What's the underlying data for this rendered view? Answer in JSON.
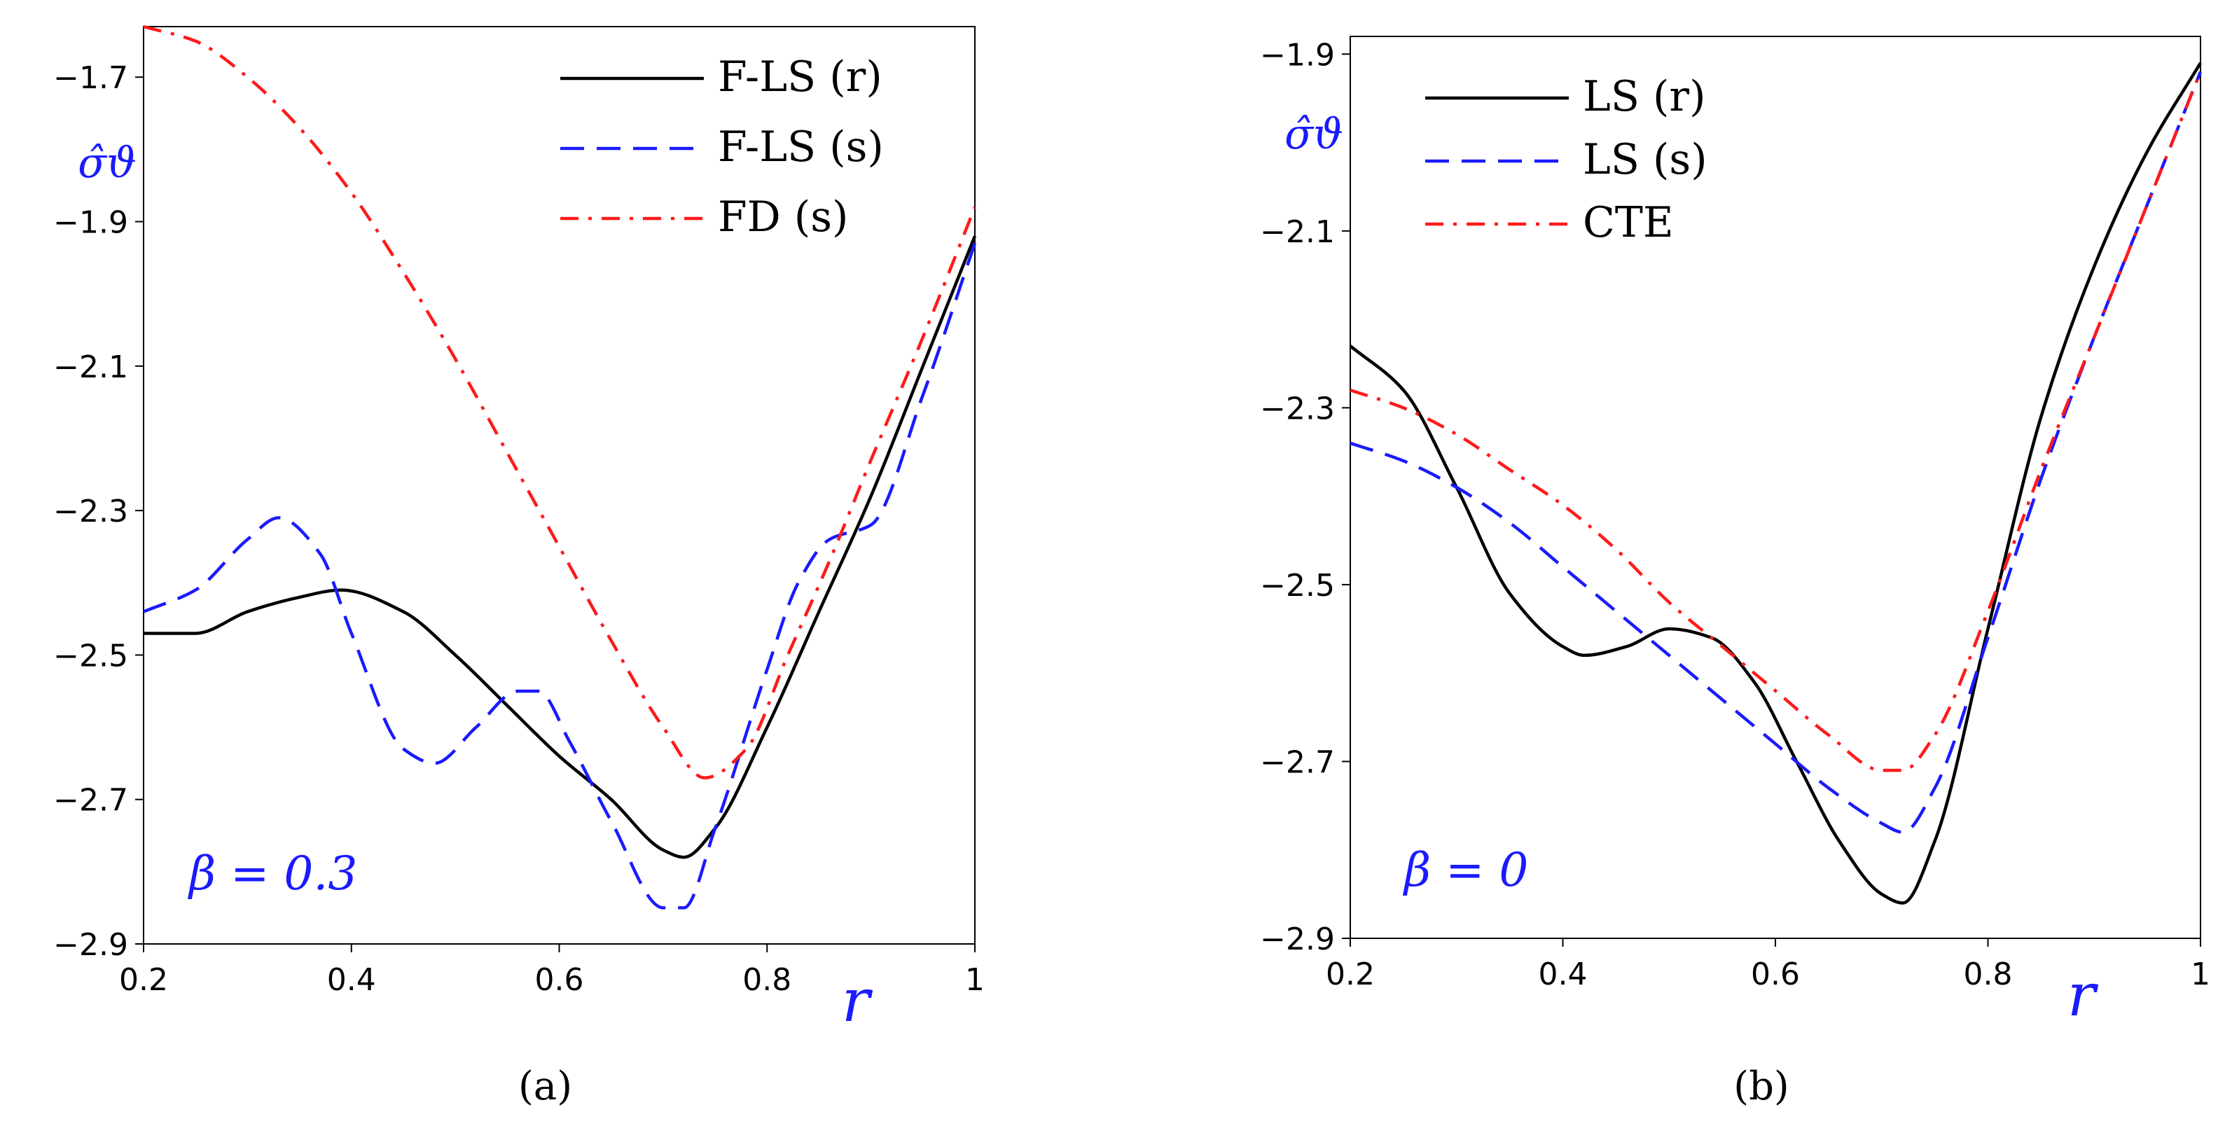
{
  "chart_data": [
    {
      "type": "line",
      "panel_label": "(a)",
      "xlabel": "r",
      "ylabel": "σ̂ϑ",
      "xlim": [
        0.2,
        1.0
      ],
      "ylim": [
        -2.9,
        -1.63
      ],
      "xticks": [
        0.2,
        0.4,
        0.6,
        0.8,
        1
      ],
      "xtick_labels": [
        "0.2",
        "0.4",
        "0.6",
        "0.8",
        "1"
      ],
      "yticks": [
        -2.9,
        -2.7,
        -2.5,
        -2.3,
        -2.1,
        -1.9,
        -1.7
      ],
      "ytick_labels": [
        "−2.9",
        "−2.7",
        "−2.5",
        "−2.3",
        "−2.1",
        "−1.9",
        "−1.7"
      ],
      "grid": false,
      "legend_position": "top-right",
      "annotation": "β = 0.3",
      "series": [
        {
          "name": "F-LS (r)",
          "color": "#000000",
          "dash": "solid",
          "x": [
            0.2,
            0.25,
            0.3,
            0.35,
            0.39,
            0.45,
            0.5,
            0.55,
            0.6,
            0.65,
            0.7,
            0.72,
            0.75,
            0.8,
            0.85,
            0.9,
            0.95,
            1.0
          ],
          "y": [
            -2.47,
            -2.47,
            -2.44,
            -2.42,
            -2.41,
            -2.44,
            -2.5,
            -2.57,
            -2.64,
            -2.7,
            -2.77,
            -2.78,
            -2.74,
            -2.6,
            -2.44,
            -2.28,
            -2.1,
            -1.92
          ]
        },
        {
          "name": "F-LS (s)",
          "color": "#1a1aff",
          "dash": "dashed",
          "x": [
            0.2,
            0.25,
            0.3,
            0.33,
            0.37,
            0.4,
            0.45,
            0.48,
            0.52,
            0.56,
            0.58,
            0.61,
            0.65,
            0.7,
            0.72,
            0.75,
            0.8,
            0.83,
            0.86,
            0.9,
            0.95,
            1.0
          ],
          "y": [
            -2.44,
            -2.41,
            -2.34,
            -2.31,
            -2.36,
            -2.47,
            -2.63,
            -2.65,
            -2.6,
            -2.55,
            -2.55,
            -2.62,
            -2.73,
            -2.85,
            -2.85,
            -2.74,
            -2.52,
            -2.4,
            -2.34,
            -2.32,
            -2.14,
            -1.93
          ]
        },
        {
          "name": "FD (s)",
          "color": "#ff1a1a",
          "dash": "dashdot",
          "x": [
            0.2,
            0.25,
            0.3,
            0.35,
            0.4,
            0.45,
            0.5,
            0.55,
            0.6,
            0.65,
            0.7,
            0.74,
            0.78,
            0.82,
            0.86,
            0.9,
            0.95,
            1.0
          ],
          "y": [
            -1.63,
            -1.65,
            -1.7,
            -1.77,
            -1.86,
            -1.97,
            -2.09,
            -2.22,
            -2.35,
            -2.48,
            -2.6,
            -2.67,
            -2.63,
            -2.5,
            -2.37,
            -2.23,
            -2.06,
            -1.88
          ]
        }
      ]
    },
    {
      "type": "line",
      "panel_label": "(b)",
      "xlabel": "r",
      "ylabel": "σ̂ϑ",
      "xlim": [
        0.2,
        1.0
      ],
      "ylim": [
        -2.9,
        -1.88
      ],
      "xticks": [
        0.2,
        0.4,
        0.6,
        0.8,
        1
      ],
      "xtick_labels": [
        "0.2",
        "0.4",
        "0.6",
        "0.8",
        "1"
      ],
      "yticks": [
        -2.9,
        -2.7,
        -2.5,
        -2.3,
        -2.1,
        -1.9
      ],
      "ytick_labels": [
        "−2.9",
        "−2.7",
        "−2.5",
        "−2.3",
        "−2.1",
        "−1.9"
      ],
      "grid": false,
      "legend_position": "top-left",
      "annotation": "β = 0",
      "series": [
        {
          "name": "LS (r)",
          "color": "#000000",
          "dash": "solid",
          "x": [
            0.2,
            0.25,
            0.3,
            0.35,
            0.4,
            0.42,
            0.46,
            0.5,
            0.54,
            0.58,
            0.62,
            0.66,
            0.7,
            0.72,
            0.75,
            0.8,
            0.85,
            0.9,
            0.95,
            1.0
          ],
          "y": [
            -2.23,
            -2.28,
            -2.39,
            -2.51,
            -2.57,
            -2.58,
            -2.57,
            -2.55,
            -2.56,
            -2.61,
            -2.7,
            -2.79,
            -2.85,
            -2.86,
            -2.79,
            -2.55,
            -2.31,
            -2.14,
            -2.01,
            -1.91
          ]
        },
        {
          "name": "LS (s)",
          "color": "#1a1aff",
          "dash": "dashed",
          "x": [
            0.2,
            0.25,
            0.3,
            0.35,
            0.4,
            0.45,
            0.5,
            0.55,
            0.6,
            0.65,
            0.7,
            0.72,
            0.75,
            0.8,
            0.85,
            0.9,
            0.95,
            1.0
          ],
          "y": [
            -2.34,
            -2.36,
            -2.39,
            -2.43,
            -2.48,
            -2.53,
            -2.58,
            -2.63,
            -2.68,
            -2.73,
            -2.77,
            -2.78,
            -2.73,
            -2.56,
            -2.38,
            -2.22,
            -2.07,
            -1.92
          ]
        },
        {
          "name": "CTE",
          "color": "#ff1a1a",
          "dash": "dashdot",
          "x": [
            0.2,
            0.25,
            0.3,
            0.35,
            0.4,
            0.45,
            0.5,
            0.55,
            0.6,
            0.65,
            0.7,
            0.72,
            0.75,
            0.8,
            0.85,
            0.9,
            0.95,
            1.0
          ],
          "y": [
            -2.28,
            -2.3,
            -2.33,
            -2.37,
            -2.41,
            -2.46,
            -2.52,
            -2.57,
            -2.62,
            -2.67,
            -2.71,
            -2.71,
            -2.67,
            -2.53,
            -2.37,
            -2.22,
            -2.07,
            -1.92
          ]
        }
      ]
    }
  ]
}
